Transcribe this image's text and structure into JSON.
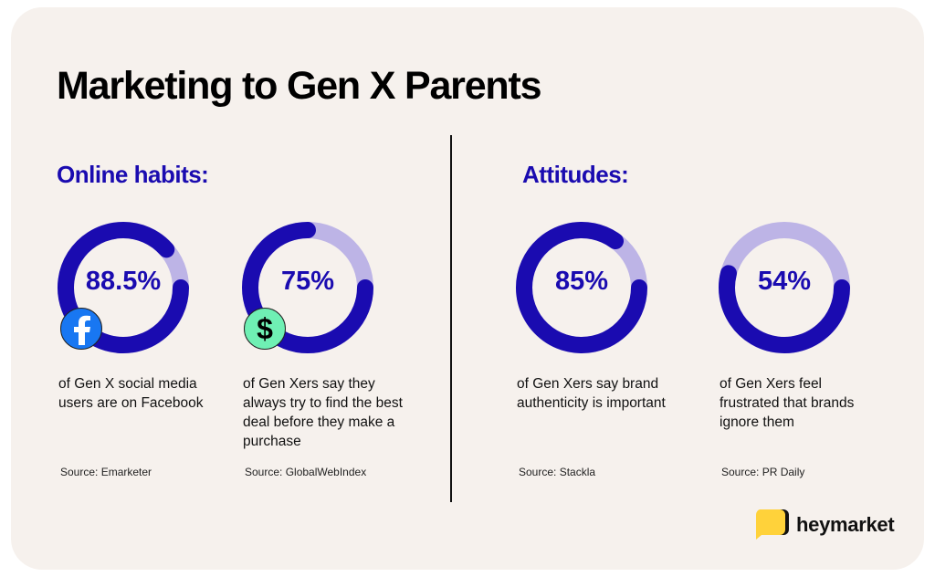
{
  "title": "Marketing to Gen X Parents",
  "sections": [
    {
      "label": "Online habits:"
    },
    {
      "label": "Attitudes:"
    }
  ],
  "colors": {
    "accent": "#1a0bb0",
    "track": "#bdb4e6",
    "background": "#f6f1ed",
    "facebook": "#1877f2",
    "dollar": "#6ff0b4",
    "logo": "#ffd23a"
  },
  "stats": [
    {
      "value": 88.5,
      "label": "88.5%",
      "description": "of Gen X social media users are on Facebook",
      "source": "Source: Emarketer",
      "icon": "facebook-icon"
    },
    {
      "value": 75,
      "label": "75%",
      "description": "of Gen Xers say they always try to find the best deal before they make a purchase",
      "source": "Source: GlobalWebIndex",
      "icon": "dollar-icon"
    },
    {
      "value": 85,
      "label": "85%",
      "description": "of Gen Xers say brand authenticity is important",
      "source": "Source: Stackla"
    },
    {
      "value": 54,
      "label": "54%",
      "description": "of Gen Xers feel frustrated that brands ignore them",
      "source": "Source: PR Daily"
    }
  ],
  "chart_data": {
    "type": "pie",
    "subtype": "donut",
    "categories": [
      "Facebook use",
      "Find best deal",
      "Brand authenticity",
      "Feel ignored"
    ],
    "values": [
      88.5,
      75,
      85,
      54
    ],
    "unit": "%"
  },
  "logo": {
    "text": "heymarket"
  }
}
